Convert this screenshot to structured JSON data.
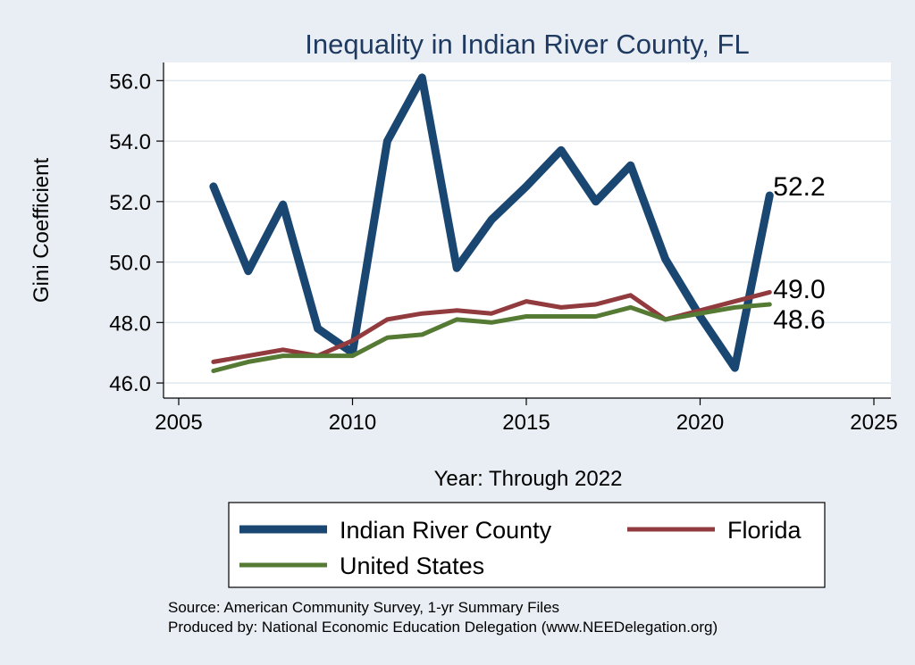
{
  "chart_data": {
    "type": "line",
    "title": "Inequality in Indian River County, FL",
    "xlabel": "Year: Through 2022",
    "ylabel": "Gini Coefficient",
    "xlim": [
      2005,
      2025
    ],
    "ylim": [
      45.5,
      56.6
    ],
    "x_ticks": [
      "2005",
      "2010",
      "2015",
      "2020",
      "2025"
    ],
    "y_ticks": [
      "46.0",
      "48.0",
      "50.0",
      "52.0",
      "54.0",
      "56.0"
    ],
    "grid": true,
    "legend_position": "bottom",
    "x": [
      2006,
      2007,
      2008,
      2009,
      2010,
      2011,
      2012,
      2013,
      2014,
      2015,
      2016,
      2017,
      2018,
      2019,
      2020,
      2021,
      2022
    ],
    "series": [
      {
        "name": "Indian River County",
        "color": "#1a4672",
        "values": [
          52.5,
          49.7,
          51.9,
          47.8,
          47.0,
          54.0,
          56.1,
          49.8,
          51.4,
          52.5,
          53.7,
          52.0,
          53.2,
          50.1,
          48.2,
          46.5,
          52.2
        ],
        "end_label": "52.2"
      },
      {
        "name": "Florida",
        "color": "#923b3f",
        "values": [
          46.7,
          46.9,
          47.1,
          46.9,
          47.4,
          48.1,
          48.3,
          48.4,
          48.3,
          48.7,
          48.5,
          48.6,
          48.9,
          48.1,
          48.4,
          48.7,
          49.0
        ],
        "end_label": "49.0"
      },
      {
        "name": "United States",
        "color": "#557a34",
        "values": [
          46.4,
          46.7,
          46.9,
          46.9,
          46.9,
          47.5,
          47.6,
          48.1,
          48.0,
          48.2,
          48.2,
          48.2,
          48.5,
          48.1,
          48.3,
          48.5,
          48.6
        ],
        "end_label": "48.6"
      }
    ],
    "source_lines": [
      "Source: American Community Survey, 1-yr Summary Files",
      "Produced by: National Economic Education Delegation (www.NEEDelegation.org)"
    ]
  }
}
